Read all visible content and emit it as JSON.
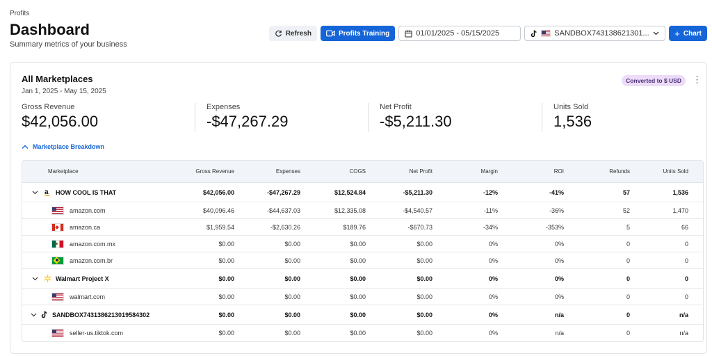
{
  "breadcrumb": "Profits",
  "page_title": "Dashboard",
  "page_subtitle": "Summary metrics of your business",
  "toolbar": {
    "refresh_label": "Refresh",
    "training_label": "Profits Training",
    "date_range": "01/01/2025 - 05/15/2025",
    "store_selector": "SANDBOX743138621301...",
    "chart_label": "Chart"
  },
  "colors": {
    "accent": "#1565d8",
    "badge_bg": "#ecdcf8",
    "badge_text": "#4a2d74"
  },
  "card": {
    "title": "All Marketplaces",
    "range": "Jan 1, 2025 - May 15, 2025",
    "currency_badge": "Converted to $ USD",
    "metrics": [
      {
        "label": "Gross Revenue",
        "value": "$42,056.00"
      },
      {
        "label": "Expenses",
        "value": "-$47,267.29"
      },
      {
        "label": "Net Profit",
        "value": "-$5,211.30"
      },
      {
        "label": "Units Sold",
        "value": "1,536"
      }
    ],
    "breakdown_label": "Marketplace Breakdown"
  },
  "table": {
    "columns": [
      "Marketplace",
      "Gross Revenue",
      "Expenses",
      "COGS",
      "Net Profit",
      "Margin",
      "ROI",
      "Refunds",
      "Units Sold"
    ],
    "groups": [
      {
        "name": "HOW COOL IS THAT",
        "icon": "amazon-icon",
        "values": [
          "$42,056.00",
          "-$47,267.29",
          "$12,524.84",
          "-$5,211.30",
          "-12%",
          "-41%",
          "57",
          "1,536"
        ],
        "rows": [
          {
            "name": "amazon.com",
            "flag": "us",
            "values": [
              "$40,096.46",
              "-$44,637.03",
              "$12,335.08",
              "-$4,540.57",
              "-11%",
              "-36%",
              "52",
              "1,470"
            ]
          },
          {
            "name": "amazon.ca",
            "flag": "ca",
            "values": [
              "$1,959.54",
              "-$2,630.26",
              "$189.76",
              "-$670.73",
              "-34%",
              "-353%",
              "5",
              "66"
            ]
          },
          {
            "name": "amazon.com.mx",
            "flag": "mx",
            "values": [
              "$0.00",
              "$0.00",
              "$0.00",
              "$0.00",
              "0%",
              "0%",
              "0",
              "0"
            ]
          },
          {
            "name": "amazon.com.br",
            "flag": "br",
            "values": [
              "$0.00",
              "$0.00",
              "$0.00",
              "$0.00",
              "0%",
              "0%",
              "0",
              "0"
            ]
          }
        ]
      },
      {
        "name": "Walmart Project X",
        "icon": "walmart-spark-icon",
        "values": [
          "$0.00",
          "$0.00",
          "$0.00",
          "$0.00",
          "0%",
          "0%",
          "0",
          "0"
        ],
        "rows": [
          {
            "name": "walmart.com",
            "flag": "us",
            "values": [
              "$0.00",
              "$0.00",
              "$0.00",
              "$0.00",
              "0%",
              "0%",
              "0",
              "0"
            ]
          }
        ]
      },
      {
        "name": "SANDBOX7431386213019584302",
        "icon": "tiktok-icon",
        "values": [
          "$0.00",
          "$0.00",
          "$0.00",
          "$0.00",
          "0%",
          "n/a",
          "0",
          "n/a"
        ],
        "rows": [
          {
            "name": "seller-us.tiktok.com",
            "flag": "us",
            "values": [
              "$0.00",
              "$0.00",
              "$0.00",
              "$0.00",
              "0%",
              "n/a",
              "0",
              "n/a"
            ]
          }
        ]
      }
    ]
  }
}
